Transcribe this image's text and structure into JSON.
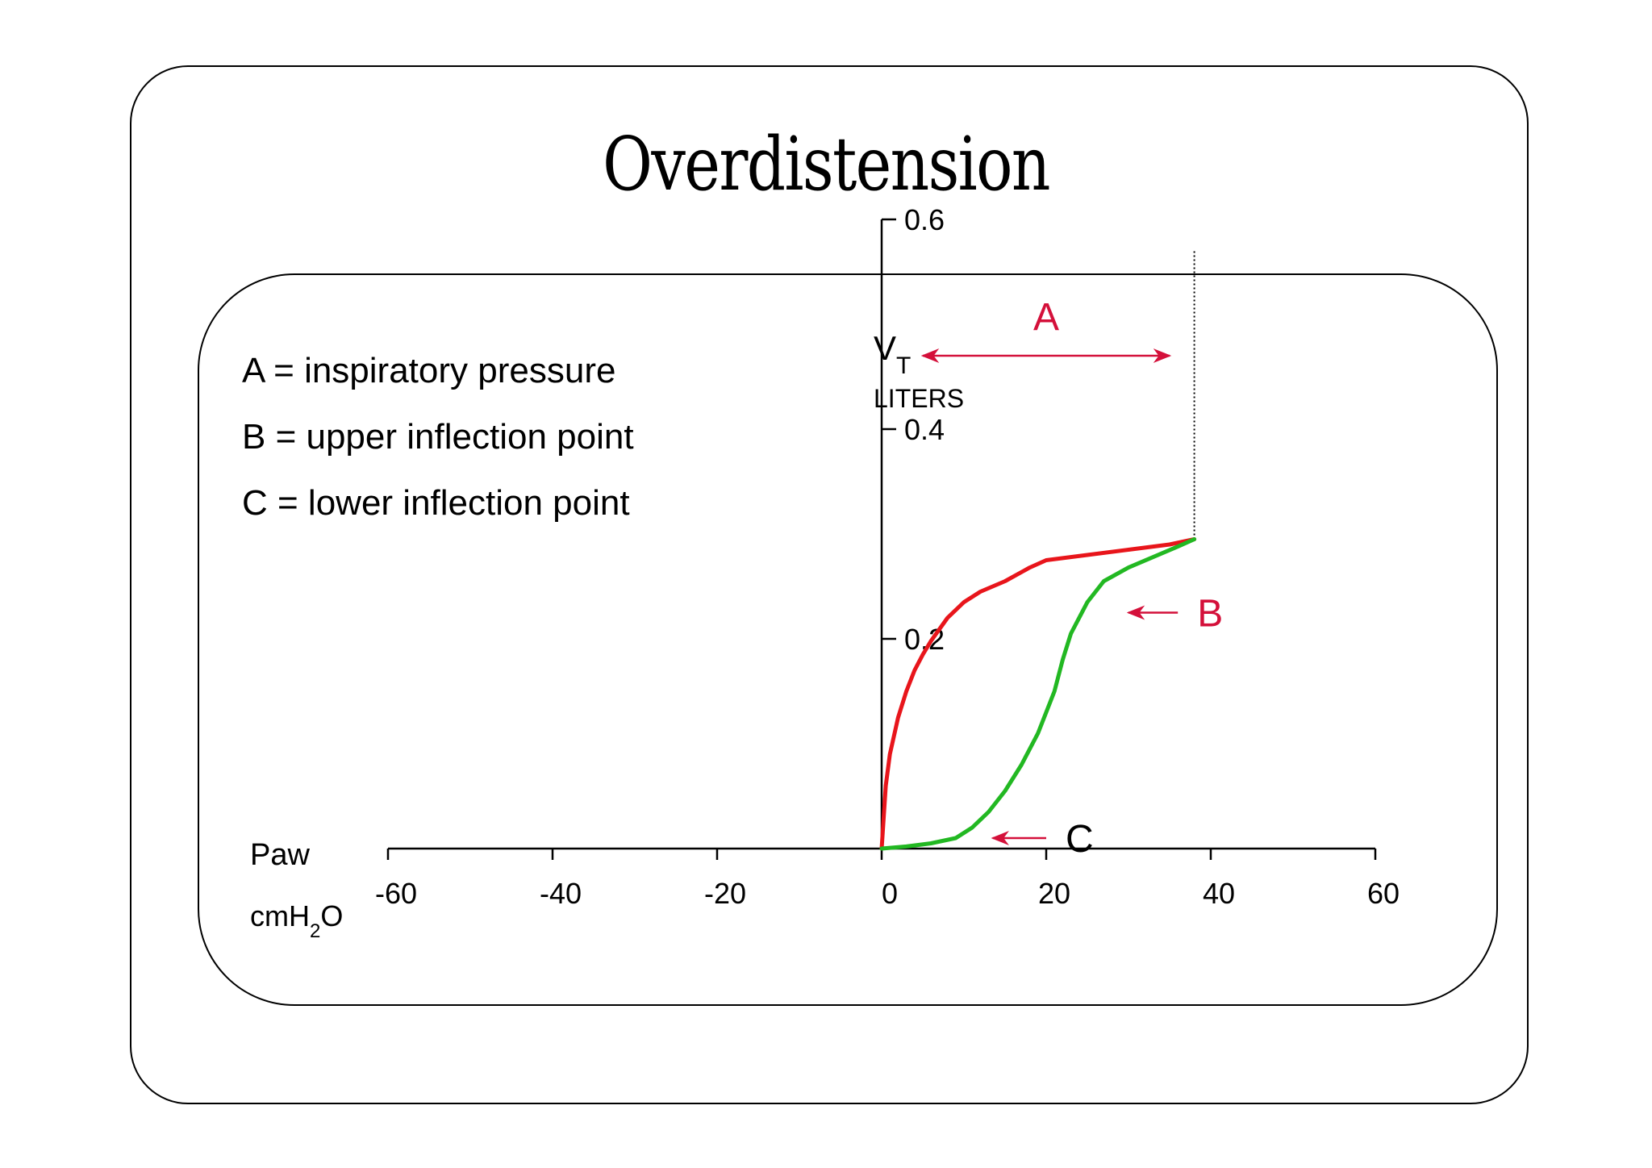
{
  "slide": {
    "title": "Overdistension"
  },
  "legend": {
    "items": [
      "A = inspiratory pressure",
      "B = upper inflection point",
      "C = lower inflection point"
    ]
  },
  "colors": {
    "inspiration": "#e8151b",
    "expiration": "#22b822",
    "annotation": "#d4103a",
    "axis": "#000000"
  },
  "chart_data": {
    "type": "line",
    "x_axis": {
      "label": "Paw",
      "unit_prefix": "cmH",
      "unit_sub": "2",
      "unit_suffix": "O",
      "range": [
        -60,
        60
      ],
      "ticks": [
        -60,
        -40,
        -20,
        0,
        20,
        40,
        60
      ],
      "tick_labels": [
        "-60",
        "-40",
        "-20",
        "0",
        "20",
        "40",
        "60"
      ]
    },
    "y_axis": {
      "label_main": "V",
      "label_sub": "T",
      "unit": "LITERS",
      "range": [
        0,
        0.6
      ],
      "ticks": [
        0.2,
        0.4,
        0.6
      ],
      "tick_labels": [
        "0.2",
        "0.4",
        "0.6"
      ]
    },
    "series": [
      {
        "key": "inspiration",
        "points": [
          [
            0,
            0
          ],
          [
            0.5,
            0.06
          ],
          [
            1,
            0.09
          ],
          [
            2,
            0.125
          ],
          [
            3,
            0.15
          ],
          [
            4,
            0.17
          ],
          [
            5,
            0.185
          ],
          [
            6,
            0.198
          ],
          [
            8,
            0.22
          ],
          [
            10,
            0.235
          ],
          [
            12,
            0.245
          ],
          [
            15,
            0.255
          ],
          [
            18,
            0.268
          ],
          [
            20,
            0.275
          ],
          [
            25,
            0.28
          ],
          [
            30,
            0.285
          ],
          [
            35,
            0.29
          ],
          [
            38,
            0.295
          ]
        ]
      },
      {
        "key": "expiration",
        "points": [
          [
            0,
            0
          ],
          [
            3,
            0.002
          ],
          [
            6,
            0.005
          ],
          [
            9,
            0.01
          ],
          [
            11,
            0.02
          ],
          [
            13,
            0.035
          ],
          [
            15,
            0.055
          ],
          [
            17,
            0.08
          ],
          [
            19,
            0.11
          ],
          [
            21,
            0.15
          ],
          [
            22,
            0.18
          ],
          [
            23,
            0.205
          ],
          [
            25,
            0.235
          ],
          [
            27,
            0.255
          ],
          [
            30,
            0.268
          ],
          [
            33,
            0.278
          ],
          [
            36,
            0.288
          ],
          [
            38,
            0.295
          ]
        ]
      }
    ],
    "annotations": [
      {
        "label": "A",
        "type": "double-arrow",
        "x_from": 5,
        "x_to": 35,
        "y": 0.47
      },
      {
        "label": "B",
        "type": "arrow",
        "x_from": 36,
        "x_to": 30,
        "y": 0.225
      },
      {
        "label": "C",
        "type": "arrow",
        "x_from": 20,
        "x_to": 13.5,
        "y": 0.01
      }
    ],
    "reference_line": {
      "x": 38,
      "y_from": 0.295,
      "y_to": 0.57,
      "style": "dotted"
    }
  }
}
